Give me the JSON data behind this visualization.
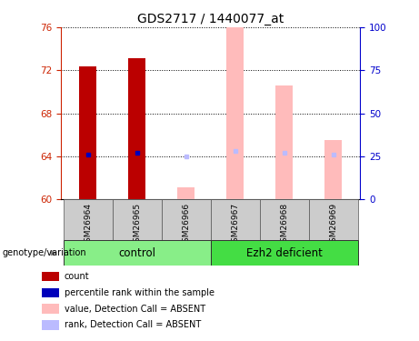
{
  "title": "GDS2717 / 1440077_at",
  "samples": [
    "GSM26964",
    "GSM26965",
    "GSM26966",
    "GSM26967",
    "GSM26968",
    "GSM26969"
  ],
  "ylim": [
    60,
    76
  ],
  "yticks": [
    60,
    64,
    68,
    72,
    76
  ],
  "y2lim": [
    0,
    100
  ],
  "y2ticks": [
    0,
    25,
    50,
    75,
    100
  ],
  "bar_width": 0.35,
  "count_color": "#bb0000",
  "absent_value_color": "#ffbbbb",
  "absent_rank_color": "#bbbbff",
  "count_values": [
    72.4,
    73.1,
    null,
    null,
    null,
    null
  ],
  "absent_values": [
    null,
    null,
    61.1,
    76.0,
    70.6,
    65.5
  ],
  "percentile_rank_values": [
    64.15,
    64.35,
    null,
    null,
    null,
    null
  ],
  "absent_rank_values": [
    null,
    null,
    64.0,
    64.55,
    64.3,
    64.15
  ],
  "control_color": "#88ee88",
  "ezh2_color": "#44dd44",
  "left_tick_color": "#cc2200",
  "right_tick_color": "#0000cc",
  "title_fontsize": 10,
  "tick_fontsize": 7.5,
  "legend_fontsize": 7,
  "label_bg": "#cccccc",
  "background_color": "#ffffff"
}
